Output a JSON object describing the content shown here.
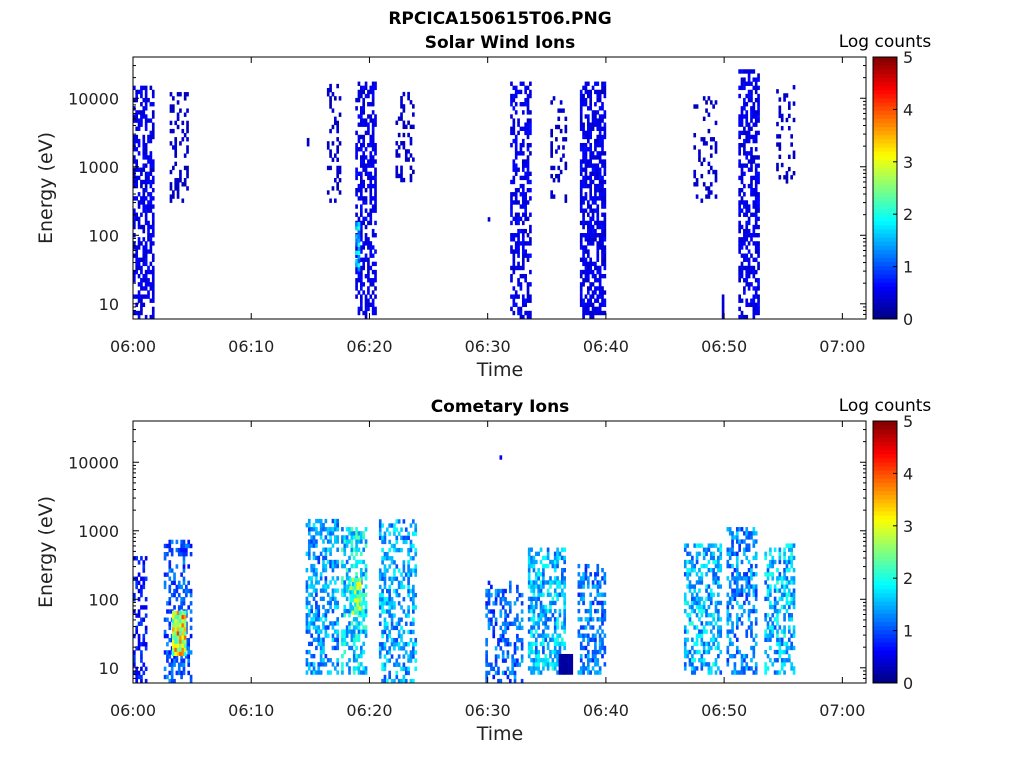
{
  "figure_title": "RPCICA150615T06.PNG",
  "chart_data": [
    {
      "type": "heatmap",
      "title": "Solar Wind Ions",
      "xlabel": "Time",
      "ylabel": "Energy (eV)",
      "colorbar_label": "Log counts",
      "colorbar_ticks": [
        "0",
        "1",
        "2",
        "3",
        "4",
        "5"
      ],
      "colorbar_range": [
        0,
        5
      ],
      "xlim": [
        "06:00",
        "07:02"
      ],
      "x_ticks": [
        "06:00",
        "06:10",
        "06:20",
        "06:30",
        "06:40",
        "06:50",
        "07:00"
      ],
      "y_scale": "log",
      "ylim": [
        6,
        40000
      ],
      "y_ticks": [
        "10",
        "100",
        "1000",
        "10000"
      ],
      "grid": false,
      "colormap": "jet",
      "bursts": [
        {
          "start": "06:00",
          "end": "06:01.8",
          "emin": 6,
          "emax": 15000,
          "density": 0.55,
          "level": 0.6
        },
        {
          "start": "06:03.1",
          "end": "06:04.7",
          "emin": 300,
          "emax": 12000,
          "density": 0.3,
          "level": 0.4
        },
        {
          "start": "06:14.7",
          "end": "06:14.8",
          "emin": 2000,
          "emax": 2500,
          "density": 1,
          "level": 0.4
        },
        {
          "start": "06:16.4",
          "end": "06:17.6",
          "emin": 300,
          "emax": 15000,
          "density": 0.22,
          "level": 0.4
        },
        {
          "start": "06:18.8",
          "end": "06:20.6",
          "emin": 6,
          "emax": 17000,
          "density": 0.55,
          "level": 0.6
        },
        {
          "start": "06:18.8",
          "end": "06:19.2",
          "emin": 30,
          "emax": 150,
          "density": 0.9,
          "level": 1.8
        },
        {
          "start": "06:22.2",
          "end": "06:23.7",
          "emin": 600,
          "emax": 12000,
          "density": 0.3,
          "level": 0.4
        },
        {
          "start": "06:30.0",
          "end": "06:30.2",
          "emin": 160,
          "emax": 180,
          "density": 1,
          "level": 0.4
        },
        {
          "start": "06:31.9",
          "end": "06:33.6",
          "emin": 6,
          "emax": 17000,
          "density": 0.5,
          "level": 0.6
        },
        {
          "start": "06:35.3",
          "end": "06:36.6",
          "emin": 300,
          "emax": 10000,
          "density": 0.22,
          "level": 0.4
        },
        {
          "start": "06:37.8",
          "end": "06:40.0",
          "emin": 6,
          "emax": 17000,
          "density": 0.65,
          "level": 0.6
        },
        {
          "start": "06:47.4",
          "end": "06:49.3",
          "emin": 300,
          "emax": 10000,
          "density": 0.22,
          "level": 0.4
        },
        {
          "start": "06:49.8",
          "end": "06:49.9",
          "emin": 6,
          "emax": 12,
          "density": 1,
          "level": 0.4
        },
        {
          "start": "06:51.2",
          "end": "06:52.9",
          "emin": 6,
          "emax": 25000,
          "density": 0.55,
          "level": 0.6
        },
        {
          "start": "06:54.4",
          "end": "06:56.0",
          "emin": 500,
          "emax": 14000,
          "density": 0.25,
          "level": 0.4
        }
      ]
    },
    {
      "type": "heatmap",
      "title": "Cometary Ions",
      "xlabel": "Time",
      "ylabel": "Energy (eV)",
      "colorbar_label": "Log counts",
      "colorbar_ticks": [
        "0",
        "1",
        "2",
        "3",
        "4",
        "5"
      ],
      "colorbar_range": [
        0,
        5
      ],
      "xlim": [
        "06:00",
        "07:02"
      ],
      "x_ticks": [
        "06:00",
        "06:10",
        "06:20",
        "06:30",
        "06:40",
        "06:50",
        "07:00"
      ],
      "y_scale": "log",
      "ylim": [
        6,
        40000
      ],
      "y_ticks": [
        "10",
        "100",
        "1000",
        "10000"
      ],
      "grid": false,
      "colormap": "jet",
      "bursts": [
        {
          "start": "06:00",
          "end": "06:01.2",
          "emin": 6,
          "emax": 400,
          "density": 0.3,
          "level": 0.8
        },
        {
          "start": "06:02.6",
          "end": "06:05.0",
          "emin": 6,
          "emax": 700,
          "density": 0.45,
          "level": 1.2
        },
        {
          "start": "06:03.3",
          "end": "06:04.5",
          "emin": 15,
          "emax": 60,
          "density": 1,
          "level": 3.6
        },
        {
          "start": "06:14.6",
          "end": "06:17.4",
          "emin": 8,
          "emax": 1300,
          "density": 0.5,
          "level": 1.6
        },
        {
          "start": "06:17.6",
          "end": "06:19.8",
          "emin": 8,
          "emax": 1100,
          "density": 0.55,
          "level": 2.0
        },
        {
          "start": "06:18.3",
          "end": "06:19.3",
          "emin": 60,
          "emax": 200,
          "density": 0.9,
          "level": 2.8
        },
        {
          "start": "06:20.8",
          "end": "06:23.9",
          "emin": 6,
          "emax": 1300,
          "density": 0.45,
          "level": 1.7
        },
        {
          "start": "06:29.8",
          "end": "06:33.0",
          "emin": 6,
          "emax": 180,
          "density": 0.4,
          "level": 1.3
        },
        {
          "start": "06:31.0",
          "end": "06:31.1",
          "emin": 11000,
          "emax": 11500,
          "density": 1,
          "level": 0.5
        },
        {
          "start": "06:33.4",
          "end": "06:36.6",
          "emin": 8,
          "emax": 500,
          "density": 0.55,
          "level": 1.8
        },
        {
          "start": "06:36.0",
          "end": "06:37.2",
          "emin": 8,
          "emax": 14,
          "density": 1,
          "level": 0.2
        },
        {
          "start": "06:37.6",
          "end": "06:40.0",
          "emin": 8,
          "emax": 300,
          "density": 0.45,
          "level": 1.4
        },
        {
          "start": "06:46.6",
          "end": "06:49.8",
          "emin": 8,
          "emax": 600,
          "density": 0.5,
          "level": 1.8
        },
        {
          "start": "06:50.2",
          "end": "06:52.8",
          "emin": 8,
          "emax": 1100,
          "density": 0.45,
          "level": 1.5
        },
        {
          "start": "06:53.4",
          "end": "06:56.0",
          "emin": 8,
          "emax": 600,
          "density": 0.5,
          "level": 1.8
        }
      ]
    }
  ]
}
